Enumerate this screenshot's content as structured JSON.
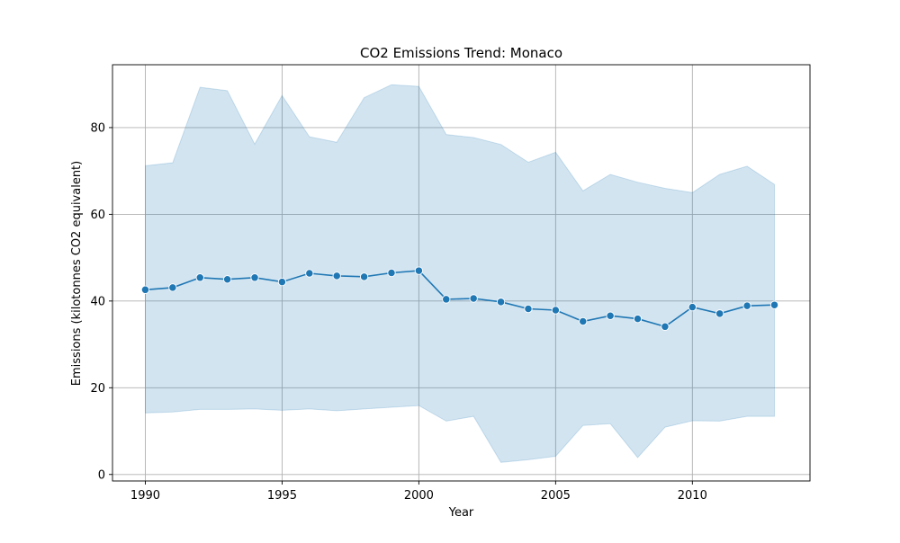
{
  "chart_data": {
    "type": "line",
    "title": "CO2 Emissions Trend: Monaco",
    "xlabel": "Year",
    "ylabel": "Emissions (kilotonnes CO2 equivalent)",
    "xlim": [
      1988.8,
      2014.3
    ],
    "ylim": [
      -1.5,
      94.5
    ],
    "xticks": [
      1990,
      1995,
      2000,
      2005,
      2010
    ],
    "yticks": [
      0,
      20,
      40,
      60,
      80
    ],
    "grid": true,
    "x": [
      1990,
      1991,
      1992,
      1993,
      1994,
      1995,
      1996,
      1997,
      1998,
      1999,
      2000,
      2001,
      2002,
      2003,
      2004,
      2005,
      2006,
      2007,
      2008,
      2009,
      2010,
      2011,
      2012,
      2013
    ],
    "series": [
      {
        "values": [
          42.6,
          43.1,
          45.4,
          45.0,
          45.4,
          44.4,
          46.4,
          45.8,
          45.6,
          46.5,
          47.0,
          40.4,
          40.6,
          39.8,
          38.2,
          37.9,
          35.3,
          36.6,
          35.9,
          34.1,
          38.6,
          37.1,
          38.9,
          39.1
        ],
        "band_upper": [
          71.2,
          71.9,
          89.3,
          88.5,
          76.2,
          87.4,
          77.9,
          76.6,
          86.9,
          89.9,
          89.5,
          78.4,
          77.7,
          76.1,
          72.0,
          74.3,
          65.4,
          69.2,
          67.4,
          66.0,
          65.0,
          69.2,
          71.1,
          66.9
        ],
        "band_lower": [
          14.2,
          14.4,
          15.0,
          15.0,
          15.1,
          14.8,
          15.1,
          14.7,
          15.1,
          15.5,
          15.9,
          12.3,
          13.4,
          2.8,
          3.4,
          4.2,
          11.3,
          11.7,
          3.9,
          10.9,
          12.4,
          12.3,
          13.4,
          13.4
        ]
      }
    ],
    "colors": {
      "line": "#1f77b4",
      "band": "#1f77b4",
      "grid": "#b0b0b0",
      "axes": "#000000"
    }
  }
}
